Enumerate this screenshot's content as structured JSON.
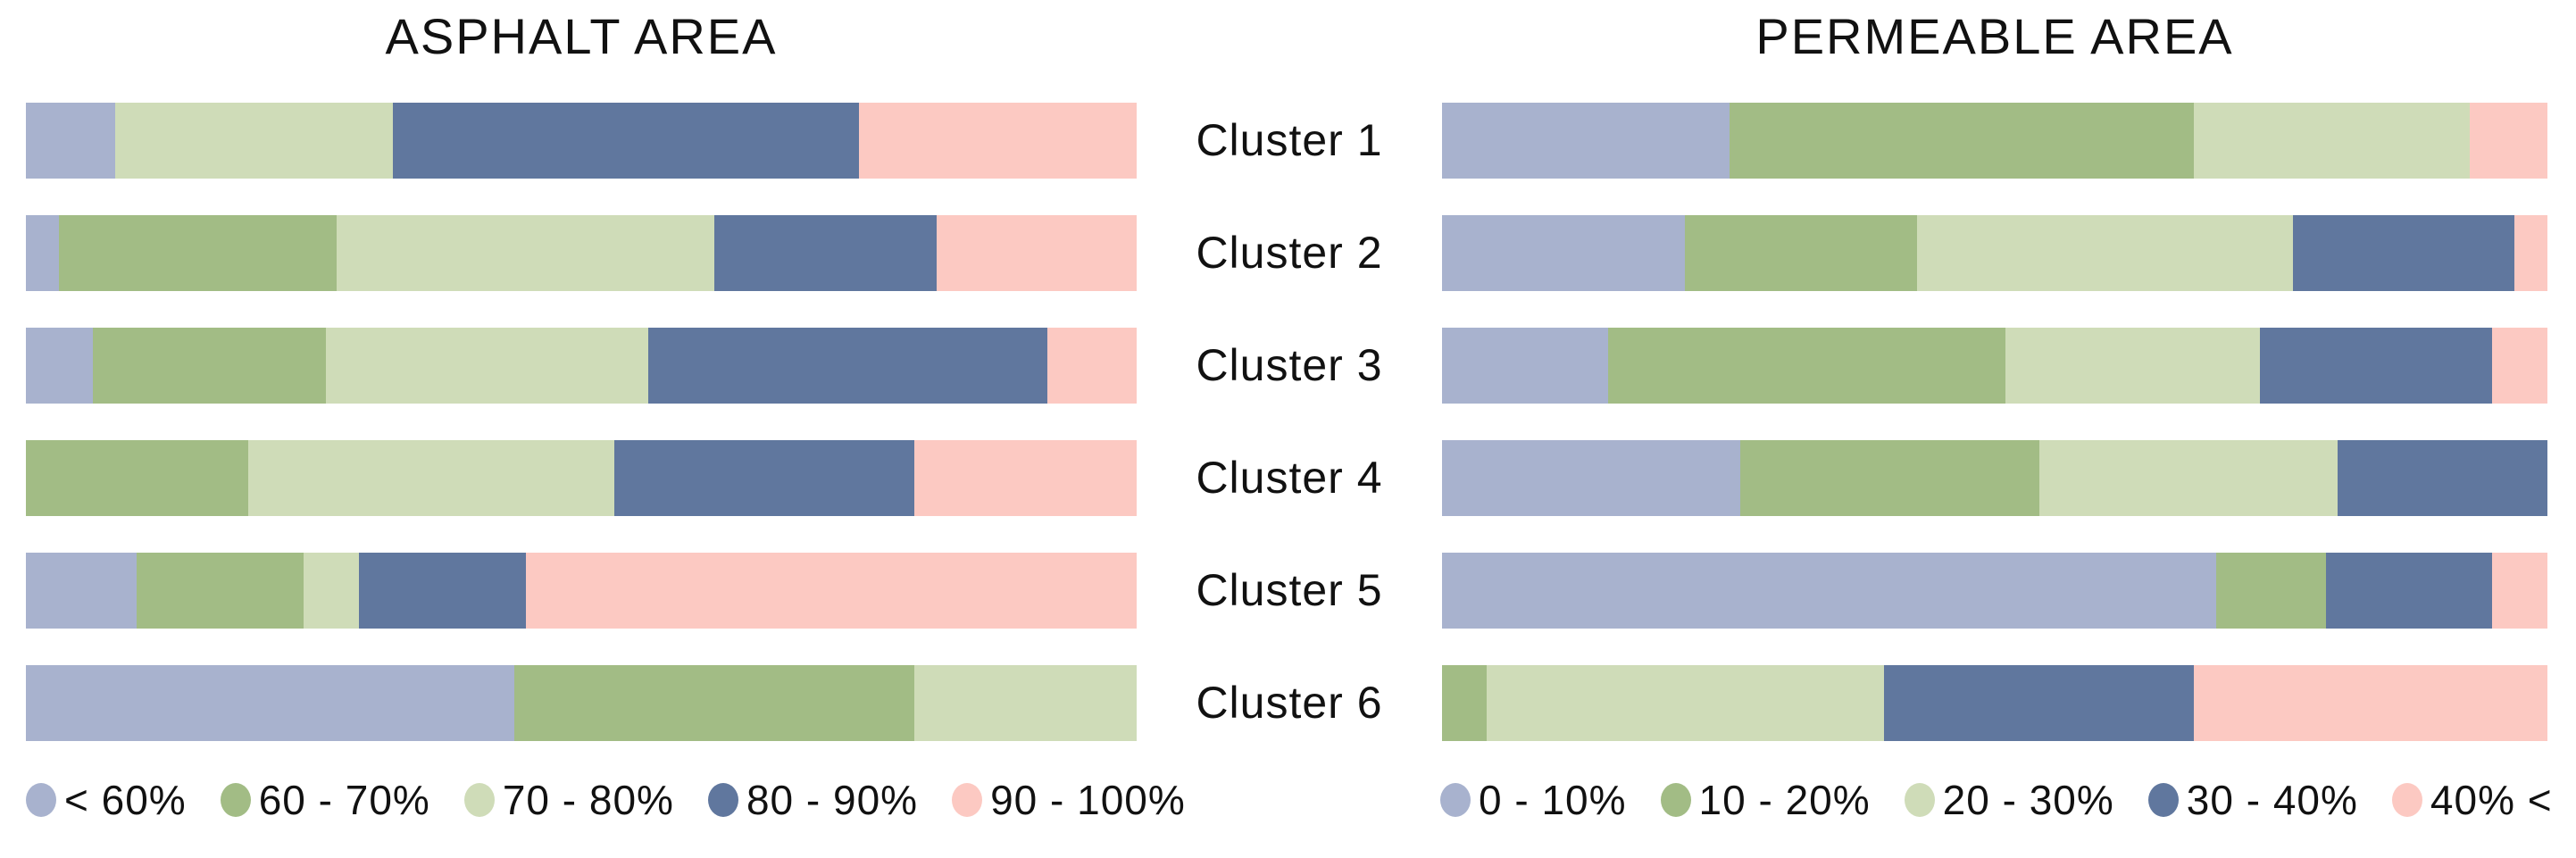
{
  "figure": {
    "background_color": "#ffffff",
    "text_color": "#111111"
  },
  "chart_data": [
    {
      "type": "stacked_bar_horizontal",
      "title": "ASPHALT AREA",
      "categories": [
        "Cluster 1",
        "Cluster 2",
        "Cluster 3",
        "Cluster 4",
        "Cluster 5",
        "Cluster 6"
      ],
      "unit": "percent of cluster",
      "xlim": [
        0,
        100
      ],
      "legend_position": "bottom",
      "series": [
        {
          "name": "< 60%",
          "color": "#a8b2ce",
          "values": [
            8,
            3,
            6,
            0,
            10,
            44
          ]
        },
        {
          "name": "60 - 70%",
          "color": "#a2bc85",
          "values": [
            0,
            25,
            21,
            20,
            15,
            36
          ]
        },
        {
          "name": "70 - 80%",
          "color": "#cfdcb8",
          "values": [
            25,
            34,
            29,
            33,
            5,
            20
          ]
        },
        {
          "name": "80 - 90%",
          "color": "#60779e",
          "values": [
            42,
            20,
            36,
            27,
            15,
            0
          ]
        },
        {
          "name": "90 - 100%",
          "color": "#fcc9c2",
          "values": [
            25,
            18,
            8,
            20,
            55,
            0
          ]
        }
      ]
    },
    {
      "type": "stacked_bar_horizontal",
      "title": "PERMEABLE AREA",
      "categories": [
        "Cluster 1",
        "Cluster 2",
        "Cluster 3",
        "Cluster 4",
        "Cluster 5",
        "Cluster 6"
      ],
      "unit": "percent of cluster",
      "xlim": [
        0,
        100
      ],
      "legend_position": "bottom",
      "series": [
        {
          "name": "0 - 10%",
          "color": "#a8b2ce",
          "values": [
            26,
            22,
            15,
            27,
            70,
            0
          ]
        },
        {
          "name": "10 - 20%",
          "color": "#a2bc85",
          "values": [
            42,
            21,
            36,
            27,
            10,
            4
          ]
        },
        {
          "name": "20 - 30%",
          "color": "#cfdcb8",
          "values": [
            25,
            34,
            23,
            27,
            0,
            36
          ]
        },
        {
          "name": "30 - 40%",
          "color": "#60779e",
          "values": [
            0,
            20,
            21,
            19,
            15,
            28
          ]
        },
        {
          "name": "40% <",
          "color": "#fcc9c2",
          "values": [
            7,
            3,
            5,
            0,
            5,
            32
          ]
        }
      ]
    }
  ]
}
